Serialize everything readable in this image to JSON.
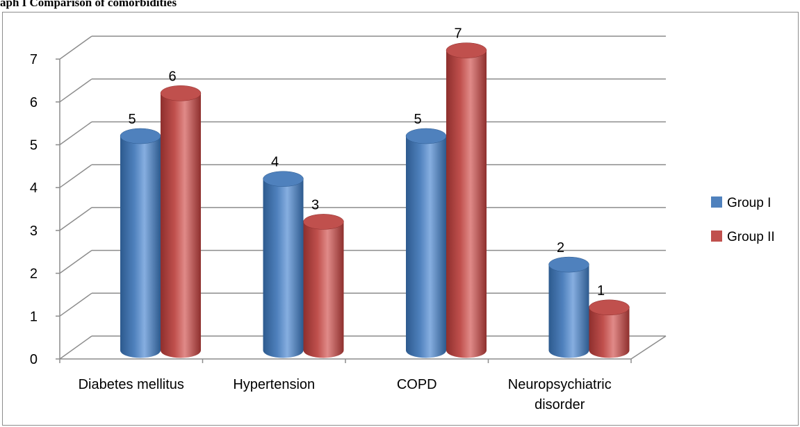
{
  "caption": "aph I Comparison of comorbidities",
  "colors": {
    "group1": "#4f81bd",
    "group1_dark": "#2d5a8e",
    "group1_light": "#86aee0",
    "group2": "#c0504d",
    "group2_dark": "#8e2f2d",
    "group2_light": "#e08a88",
    "grid": "#8c8c8c"
  },
  "chart_data": {
    "type": "bar",
    "categories": [
      "Diabetes mellitus",
      "Hypertension",
      "COPD",
      "Neuropsychiatric disorder"
    ],
    "series": [
      {
        "name": "Group I",
        "values": [
          5,
          4,
          5,
          2
        ]
      },
      {
        "name": "Group II",
        "values": [
          6,
          3,
          7,
          1
        ]
      }
    ],
    "yticks": [
      "0",
      "1",
      "2",
      "3",
      "4",
      "5",
      "6",
      "7"
    ],
    "ylim": [
      0,
      7
    ],
    "grid": true,
    "legend": "right",
    "style": "3d-cylinder"
  }
}
